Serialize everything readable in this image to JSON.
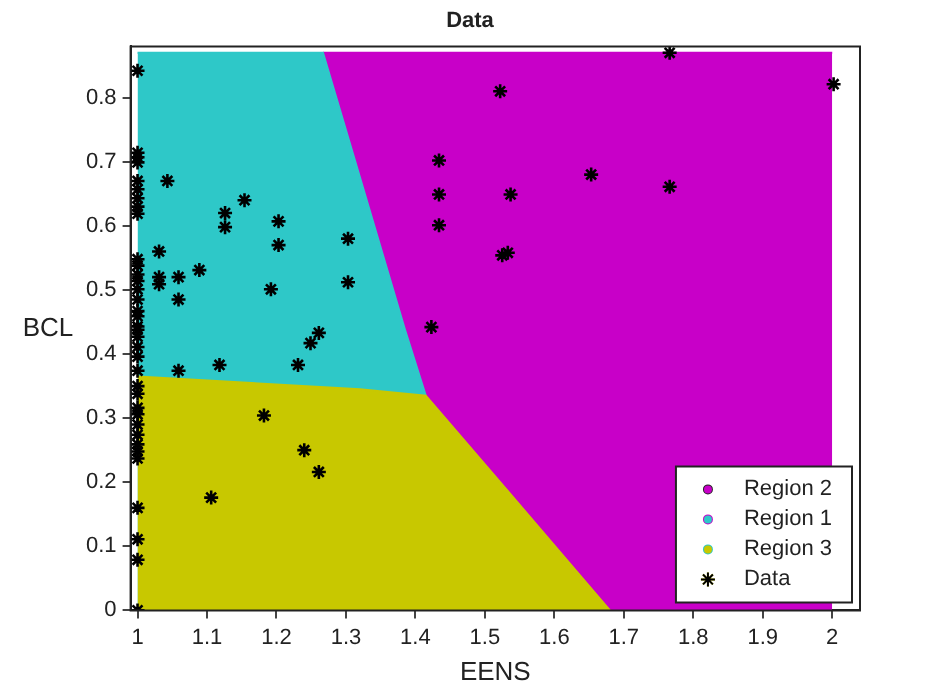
{
  "chart_data": {
    "type": "scatter",
    "title": "Data",
    "xlabel": "EENS",
    "ylabel": "BCL",
    "xlim": [
      0.99,
      2.04
    ],
    "xticks": [
      1,
      {
        "value": 1.1,
        "label": "1.1"
      },
      {
        "value": 1.2,
        "label": "1.2"
      },
      {
        "value": 1.3,
        "label": "1.3"
      },
      {
        "value": 1.4,
        "label": "1.4"
      },
      {
        "value": 1.5,
        "label": "1.5"
      },
      {
        "value": 1.6,
        "label": "1.6"
      },
      {
        "value": 1.7,
        "label": "1.7"
      },
      {
        "value": 1.8,
        "label": "1.8"
      },
      {
        "value": 1.9,
        "label": "1.9"
      },
      2
    ],
    "ylim": [
      0,
      0.88
    ],
    "yticks": [
      0,
      0.1,
      0.2,
      0.3,
      0.4,
      0.5,
      0.6,
      0.7,
      0.8
    ],
    "grid": false,
    "legend": "bottom right",
    "series": [
      {
        "name": "Region 2",
        "type": "area",
        "color": "#c800c8",
        "x": [
          1.267,
          2
        ],
        "values": [
          0.87,
          0.87
        ]
      },
      {
        "name": "Region 1",
        "type": "area",
        "color": "#2ec8c8",
        "x": [
          1,
          1.267,
          1.32,
          1.385,
          1.415
        ],
        "values": [
          0.87,
          0.87,
          0.676,
          0.438,
          0.335
        ]
      },
      {
        "name": "Region 3",
        "type": "area",
        "color": "#c8c800",
        "x": [
          1,
          1.32,
          1.415,
          1.53,
          1.68
        ],
        "values": [
          0.365,
          0.345,
          0.335,
          0.19,
          0
        ]
      },
      {
        "name": "Data",
        "color": "#000000",
        "marker": "cross",
        "x": [
          1,
          1,
          1,
          1,
          1,
          1,
          1,
          1,
          1,
          1,
          1,
          1,
          1,
          1,
          1,
          1,
          1,
          1,
          1,
          1,
          1,
          1,
          1,
          1,
          1,
          1,
          1,
          1,
          1,
          1,
          1,
          1,
          1,
          1,
          1,
          1,
          1.043,
          1.154,
          1.126,
          1.126,
          1.203,
          1.203,
          1.303,
          1.031,
          1.031,
          1.031,
          1.059,
          1.059,
          1.089,
          1.192,
          1.303,
          1.261,
          1.423,
          1.434,
          1.434,
          1.434,
          1.522,
          1.537,
          1.525,
          1.533,
          1.766,
          2.002,
          1.653,
          1.766,
          1.059,
          1.118,
          1.231,
          1.249,
          1.182,
          1.24,
          1.261,
          1.106
        ],
        "values": [
          0.842,
          0.714,
          0.707,
          0.699,
          0.67,
          0.657,
          0.643,
          0.63,
          0.619,
          0.548,
          0.538,
          0.524,
          0.514,
          0.501,
          0.485,
          0.467,
          0.459,
          0.443,
          0.427,
          0.411,
          0.396,
          0.374,
          0.35,
          0.338,
          0.316,
          0.306,
          0.29,
          0.274,
          0.259,
          0.248,
          0.237,
          0.16,
          0.111,
          0.079,
          0,
          0.438,
          0.67,
          0.64,
          0.62,
          0.598,
          0.607,
          0.57,
          0.58,
          0.56,
          0.52,
          0.509,
          0.52,
          0.485,
          0.531,
          0.501,
          0.512,
          0.433,
          0.442,
          0.702,
          0.649,
          0.601,
          0.81,
          0.649,
          0.554,
          0.558,
          0.87,
          0.821,
          0.68,
          0.661,
          0.374,
          0.383,
          0.383,
          0.417,
          0.304,
          0.25,
          0.216,
          0.176
        ]
      }
    ]
  }
}
